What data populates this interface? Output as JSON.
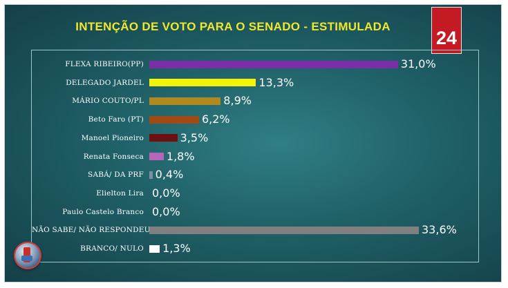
{
  "badge_text": "24",
  "chart_data": {
    "type": "bar",
    "orientation": "horizontal",
    "title": "INTENÇÃO DE VOTO PARA O SENADO - ESTIMULADA",
    "categories": [
      "FLEXA RIBEIRO(PP)",
      "DELEGADO JARDEL",
      "MÁRIO COUTO/PL",
      "Beto Faro (PT)",
      "Manoel Pioneiro",
      "Renata Fonseca",
      "SABÁ/ DA PRF",
      "Elielton Lira",
      "Paulo Castelo Branco",
      "NÃO SABE/ NÃO RESPONDEU",
      "BRANCO/ NULO"
    ],
    "values": [
      31.0,
      13.3,
      8.9,
      6.2,
      3.5,
      1.8,
      0.4,
      0.0,
      0.0,
      33.6,
      1.3
    ],
    "value_labels": [
      "31,0%",
      "13,3%",
      "8,9%",
      "6,2%",
      "3,5%",
      "1,8%",
      "0,4%",
      "0,0%",
      "0,0%",
      "33,6%",
      "1,3%"
    ],
    "colors": [
      "#7a2fa6",
      "#f5f20a",
      "#b08a1e",
      "#a14a12",
      "#6d1010",
      "#b566b8",
      "#7d8fa3",
      "#7d8fa3",
      "#7d8fa3",
      "#808080",
      "#ffffff"
    ],
    "xlim": [
      0,
      33.6
    ],
    "grid": false,
    "legend": "none"
  },
  "colors": {
    "title": "#f0e829",
    "background": "#1f5f66",
    "badge": "#c41a23"
  }
}
